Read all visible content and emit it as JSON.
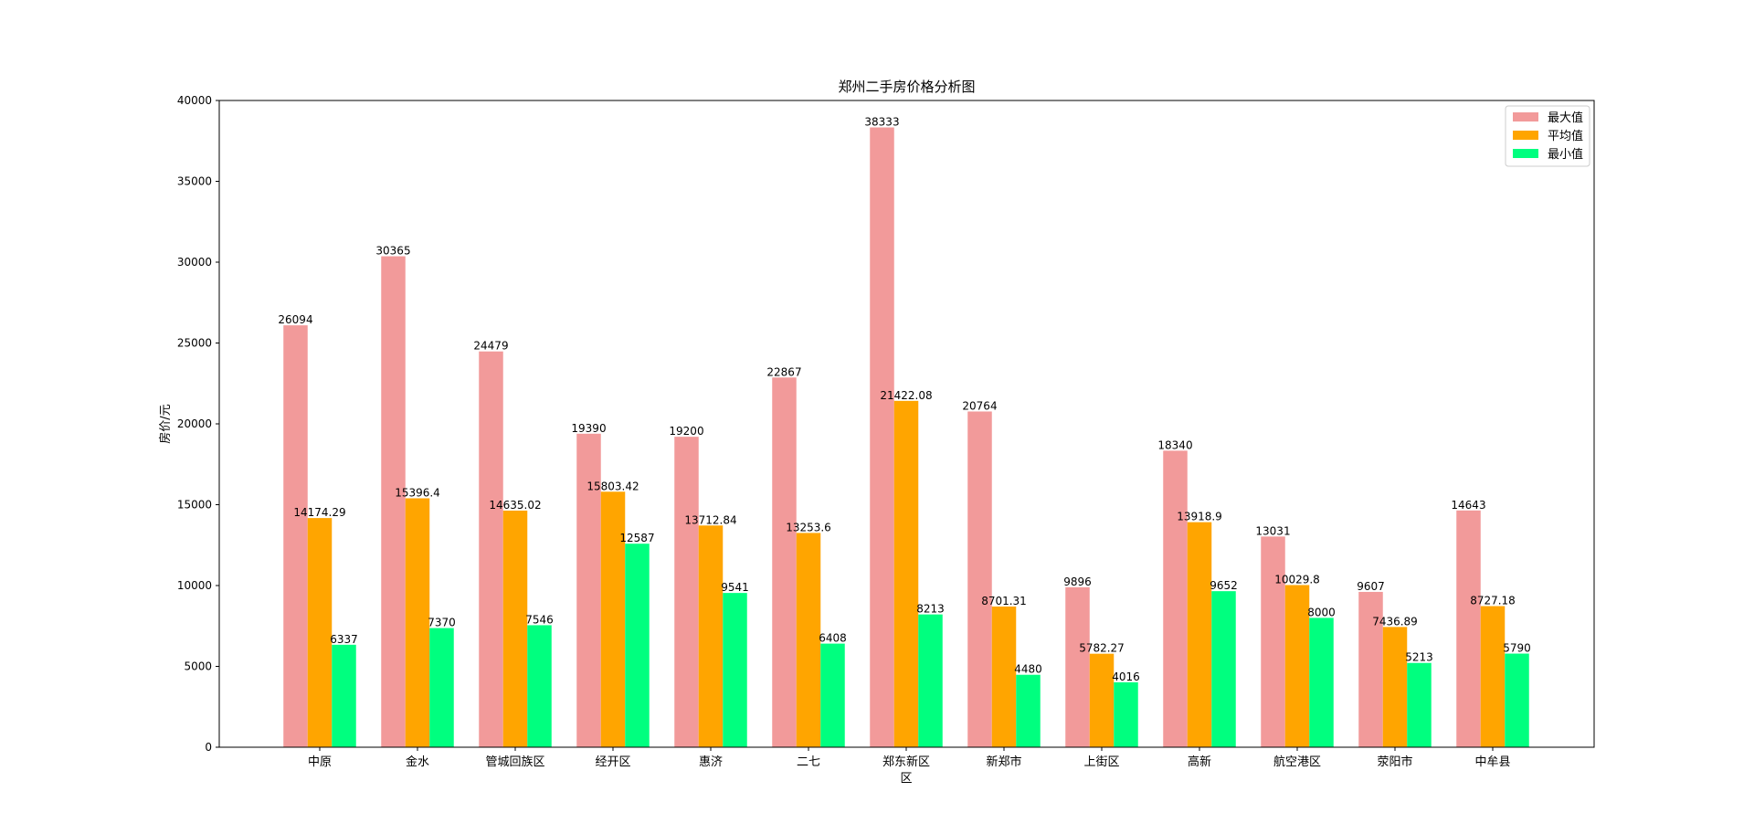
{
  "chart_data": {
    "type": "bar",
    "title": "郑州二手房价格分析图",
    "xlabel": "",
    "ylabel": "房价/元",
    "ylim": [
      0,
      40000
    ],
    "yticks": [
      0,
      5000,
      10000,
      15000,
      20000,
      25000,
      30000,
      35000,
      40000
    ],
    "grid": false,
    "legend_position": "top-right",
    "categories": [
      [
        "中原"
      ],
      [
        "金水"
      ],
      [
        "管城回族区"
      ],
      [
        "经开区"
      ],
      [
        "惠济"
      ],
      [
        "二七"
      ],
      [
        "郑东新区",
        "区"
      ],
      [
        "新郑市"
      ],
      [
        "上街区"
      ],
      [
        "高新"
      ],
      [
        "航空港区"
      ],
      [
        "荥阳市"
      ],
      [
        "中牟县"
      ]
    ],
    "series": [
      {
        "name": "最大值",
        "color": "#f29a9a",
        "values": [
          26094,
          30365,
          24479,
          19390,
          19200,
          22867,
          38333,
          20764,
          9896,
          18340,
          13031,
          9607,
          14643
        ],
        "labels": [
          "26094",
          "30365",
          "24479",
          "19390",
          "19200",
          "22867",
          "38333",
          "20764",
          "9896",
          "18340",
          "13031",
          "9607",
          "14643"
        ]
      },
      {
        "name": "平均值",
        "color": "#ffa500",
        "values": [
          14174.29,
          15396.4,
          14635.02,
          15803.42,
          13712.84,
          13253.6,
          21422.08,
          8701.31,
          5782.27,
          13918.9,
          10029.8,
          7436.89,
          8727.18
        ],
        "labels": [
          "14174.29",
          "15396.4",
          "14635.02",
          "15803.42",
          "13712.84",
          "13253.6",
          "21422.08",
          "8701.31",
          "5782.27",
          "13918.9",
          "10029.8",
          "7436.89",
          "8727.18"
        ]
      },
      {
        "name": "最小值",
        "color": "#00ff7f",
        "values": [
          6337,
          7370,
          7546,
          12587,
          9541,
          6408,
          8213,
          4480,
          4016,
          9652,
          8000,
          5213,
          5790
        ],
        "labels": [
          "6337",
          "7370",
          "7546",
          "12587",
          "9541",
          "6408",
          "8213",
          "4480",
          "4016",
          "9652",
          "8000",
          "5213",
          "5790"
        ]
      }
    ]
  }
}
